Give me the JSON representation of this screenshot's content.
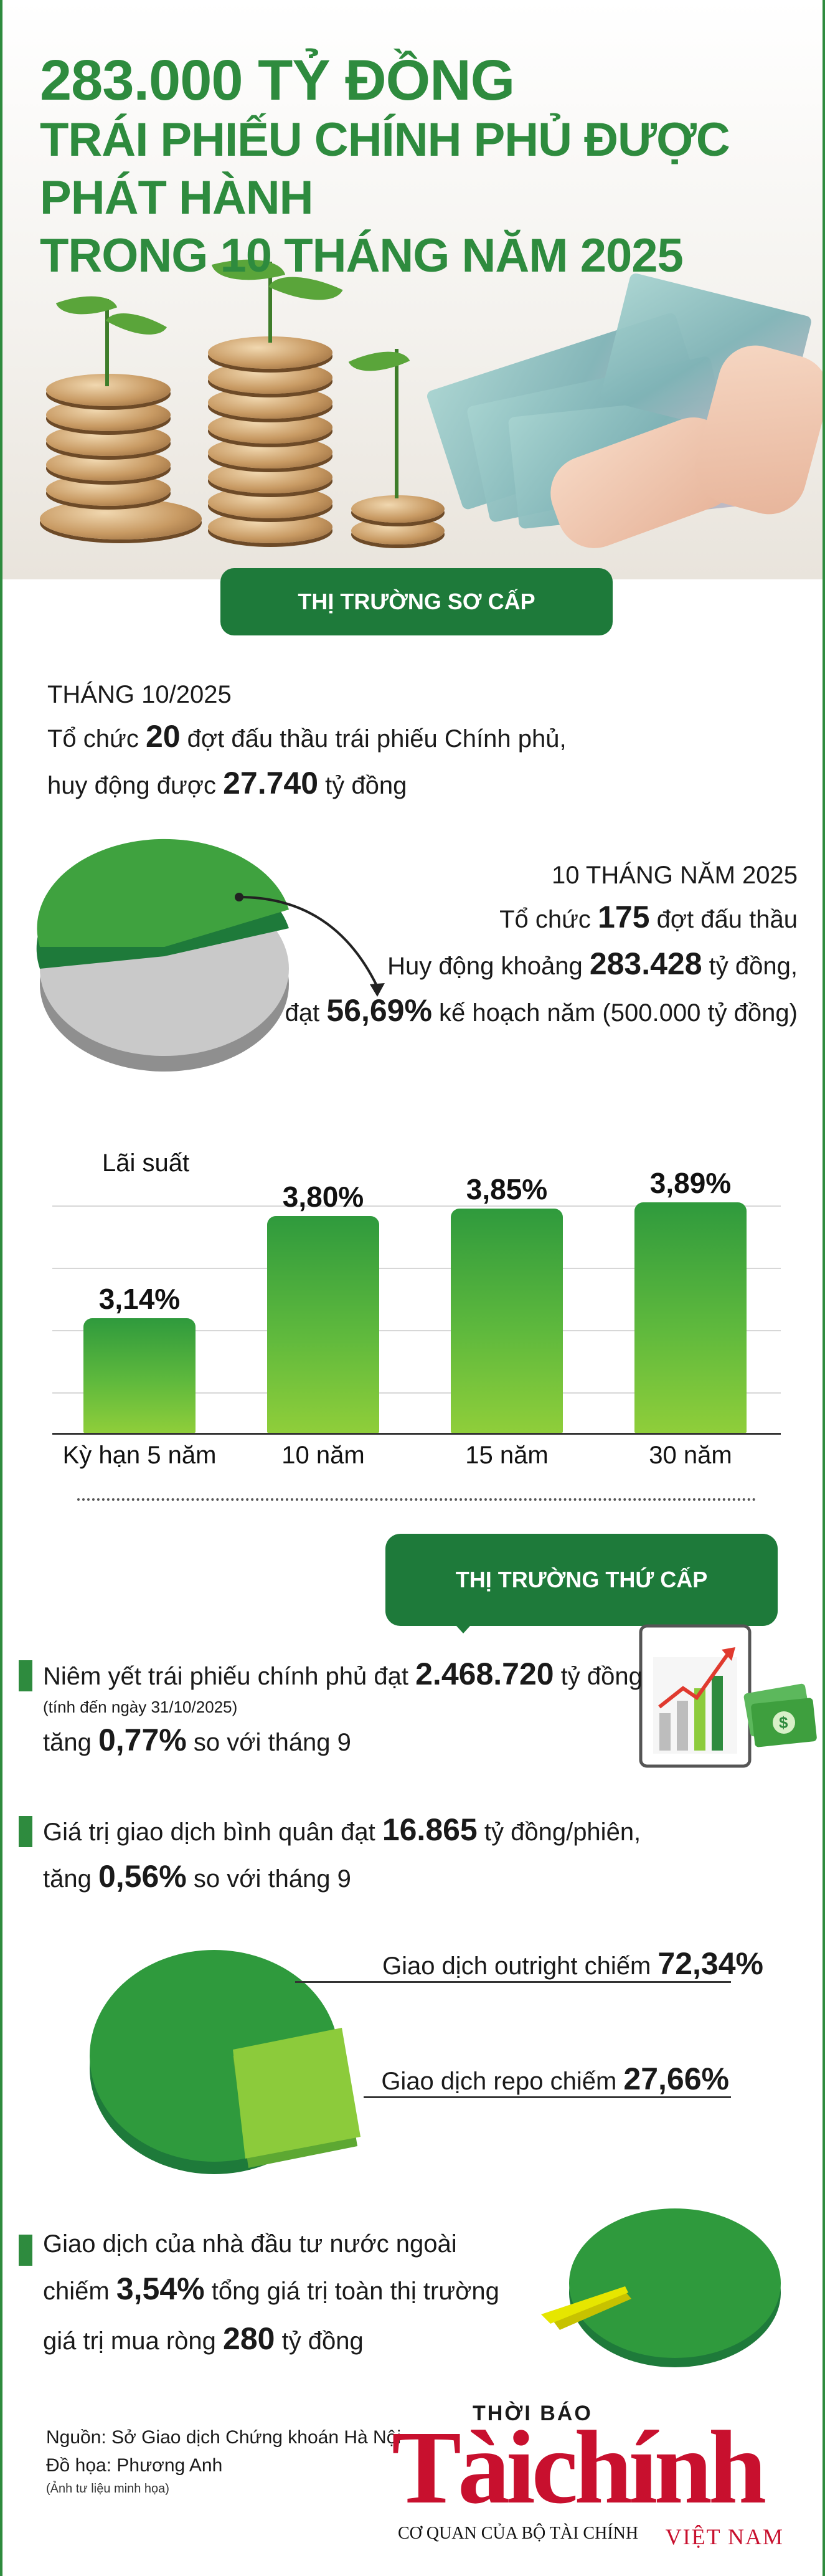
{
  "header": {
    "line1": "283.000 TỶ ĐỒNG",
    "line2": "TRÁI PHIẾU CHÍNH PHỦ ĐƯỢC PHÁT HÀNH",
    "line3": "TRONG 10 THÁNG NĂM 2025"
  },
  "primary": {
    "banner": "THỊ TRƯỜNG SƠ CẤP",
    "month_label": "THÁNG 10/2025",
    "month_line1_pre": "Tổ chức ",
    "month_line1_num": "20",
    "month_line1_post": " đợt đấu thầu trái phiếu Chính phủ,",
    "month_line2_pre": "huy động được ",
    "month_line2_num": "27.740",
    "month_line2_post": " tỷ đồng",
    "ten_label": "10 THÁNG NĂM 2025",
    "ten_line1_pre": "Tổ chức ",
    "ten_line1_num": "175",
    "ten_line1_post": " đợt đấu thầu",
    "ten_line2_pre": "Huy động khoảng ",
    "ten_line2_num": "283.428",
    "ten_line2_post": " tỷ đồng,",
    "ten_line3_pre": "đạt ",
    "ten_line3_num": "56,69%",
    "ten_line3_post": " kế hoạch năm (500.000 tỷ đồng)",
    "plan_pie": {
      "achieved_percent": 56.69
    }
  },
  "chart_data": {
    "type": "bar",
    "title": "",
    "ylabel": "",
    "xlabel": "",
    "annotation": "Lãi suất",
    "categories": [
      "Kỳ hạn 5 năm",
      "10 năm",
      "15 năm",
      "30 năm"
    ],
    "values": [
      3.14,
      3.8,
      3.85,
      3.89
    ],
    "value_labels": [
      "3,14%",
      "3,80%",
      "3,85%",
      "3,89%"
    ],
    "grid": true
  },
  "secondary": {
    "banner": "THỊ TRƯỜNG THỨ CẤP",
    "listed_pre": "Niêm yết trái phiếu chính phủ đạt ",
    "listed_num": "2.468.720",
    "listed_post": " tỷ đồng",
    "listed_note": "(tính đến ngày 31/10/2025)",
    "listed_change_pre": "tăng ",
    "listed_change_num": "0,77%",
    "listed_change_post": " so với tháng 9",
    "trade_pre": "Giá trị giao dịch bình quân đạt ",
    "trade_num": "16.865",
    "trade_post": " tỷ đồng/phiên,",
    "trade_change_pre": "tăng ",
    "trade_change_num": "0,56%",
    "trade_change_post": " so với tháng 9",
    "outright_label": "Giao dịch outright chiếm ",
    "outright_value": "72,34%",
    "repo_label": "Giao dịch repo chiếm ",
    "repo_value": "27,66%",
    "split_pie": {
      "outright": 72.34,
      "repo": 27.66
    },
    "foreign_line1": "Giao dịch của nhà đầu tư nước ngoài",
    "foreign_line2_pre": "chiếm ",
    "foreign_line2_num": "3,54%",
    "foreign_line2_post": " tổng giá trị toàn thị trường",
    "foreign_line3_pre": "giá trị mua ròng ",
    "foreign_line3_num": "280",
    "foreign_line3_post": " tỷ đồng",
    "foreign_pie": {
      "foreign_percent": 3.54
    }
  },
  "footer": {
    "source": "Nguồn: Sở Giao dịch Chứng khoán Hà Nội",
    "design": "Đồ họa: Phương Anh",
    "photo_note": "(Ảnh tư liệu minh họa)"
  },
  "logo": {
    "top": "THỜI BÁO",
    "main": "Tàichính",
    "sub": "CƠ QUAN CỦA BỘ TÀI CHÍNH",
    "vn": "VIỆT NAM"
  },
  "colors": {
    "green": "#2e8b3e",
    "dark_green": "#1e7a3a",
    "light_green": "#8ccb3b",
    "grey": "#bdbdbd",
    "logo_red": "#c8102e"
  }
}
